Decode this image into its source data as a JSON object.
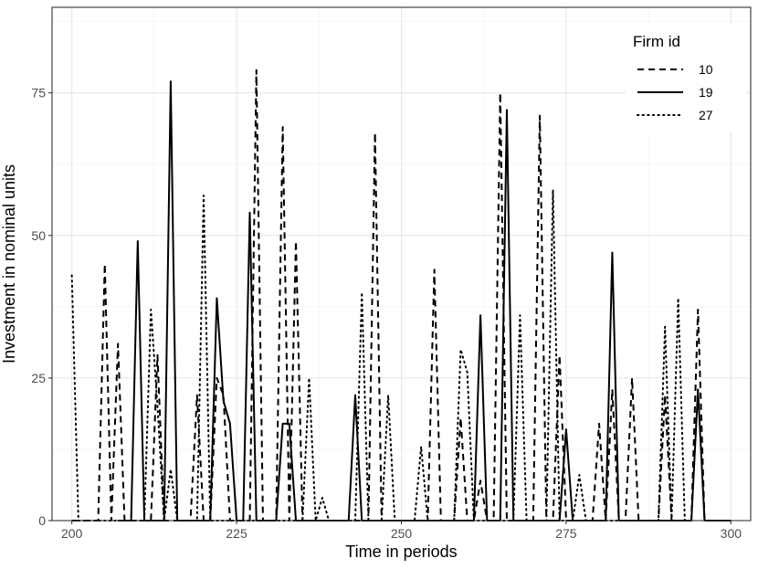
{
  "chart_data": {
    "type": "line",
    "xlabel": "Time in periods",
    "ylabel": "Investment in nominal units",
    "xlim": [
      197,
      303
    ],
    "ylim": [
      0,
      90
    ],
    "x_ticks": [
      200,
      225,
      250,
      275,
      300
    ],
    "y_ticks": [
      0,
      25,
      50,
      75
    ],
    "grid": true,
    "legend_title": "Firm id",
    "legend_position": "top-right",
    "series": [
      {
        "name": "10",
        "line_style": "dashed",
        "color": "#000000",
        "points": [
          [
            200,
            0
          ],
          [
            201,
            0
          ],
          [
            202,
            0
          ],
          [
            203,
            0
          ],
          [
            204,
            0
          ],
          [
            205,
            45
          ],
          [
            206,
            0
          ],
          [
            207,
            31
          ],
          [
            208,
            0
          ],
          [
            209,
            0
          ],
          [
            210,
            0
          ],
          [
            211,
            0
          ],
          [
            212,
            0
          ],
          [
            213,
            29
          ],
          [
            214,
            0
          ],
          [
            215,
            0
          ],
          [
            216,
            0
          ],
          [
            217,
            0
          ],
          [
            218,
            0
          ],
          [
            219,
            22
          ],
          [
            220,
            0
          ],
          [
            221,
            0
          ],
          [
            222,
            25
          ],
          [
            223,
            22
          ],
          [
            224,
            0
          ],
          [
            225,
            0
          ],
          [
            226,
            0
          ],
          [
            227,
            0
          ],
          [
            228,
            79
          ],
          [
            229,
            0
          ],
          [
            230,
            0
          ],
          [
            231,
            0
          ],
          [
            232,
            69
          ],
          [
            233,
            0
          ],
          [
            234,
            49
          ],
          [
            235,
            0
          ],
          [
            236,
            0
          ],
          [
            237,
            0
          ],
          [
            238,
            0
          ],
          [
            239,
            0
          ],
          [
            240,
            0
          ],
          [
            241,
            0
          ],
          [
            242,
            0
          ],
          [
            243,
            0
          ],
          [
            244,
            0
          ],
          [
            245,
            0
          ],
          [
            246,
            68
          ],
          [
            247,
            0
          ],
          [
            248,
            0
          ],
          [
            249,
            0
          ],
          [
            250,
            0
          ],
          [
            251,
            0
          ],
          [
            252,
            0
          ],
          [
            253,
            0
          ],
          [
            254,
            0
          ],
          [
            255,
            44
          ],
          [
            256,
            0
          ],
          [
            257,
            0
          ],
          [
            258,
            0
          ],
          [
            259,
            18
          ],
          [
            260,
            0
          ],
          [
            261,
            0
          ],
          [
            262,
            7
          ],
          [
            263,
            0
          ],
          [
            264,
            0
          ],
          [
            265,
            75
          ],
          [
            266,
            0
          ],
          [
            267,
            0
          ],
          [
            268,
            0
          ],
          [
            269,
            0
          ],
          [
            270,
            0
          ],
          [
            271,
            71
          ],
          [
            272,
            0
          ],
          [
            273,
            0
          ],
          [
            274,
            29
          ],
          [
            275,
            0
          ],
          [
            276,
            0
          ],
          [
            277,
            0
          ],
          [
            278,
            0
          ],
          [
            279,
            0
          ],
          [
            280,
            17
          ],
          [
            281,
            0
          ],
          [
            282,
            23
          ],
          [
            283,
            0
          ],
          [
            284,
            0
          ],
          [
            285,
            25
          ],
          [
            286,
            0
          ],
          [
            287,
            0
          ],
          [
            288,
            0
          ],
          [
            289,
            0
          ],
          [
            290,
            22
          ],
          [
            291,
            0
          ],
          [
            292,
            0
          ],
          [
            293,
            0
          ],
          [
            294,
            0
          ],
          [
            295,
            37
          ],
          [
            296,
            0
          ]
        ]
      },
      {
        "name": "19",
        "line_style": "solid",
        "color": "#000000",
        "points": [
          [
            207,
            0
          ],
          [
            208,
            0
          ],
          [
            209,
            0
          ],
          [
            210,
            49
          ],
          [
            211,
            0
          ],
          [
            212,
            0
          ],
          [
            213,
            0
          ],
          [
            214,
            0
          ],
          [
            215,
            77
          ],
          [
            216,
            0
          ],
          [
            217,
            0
          ],
          [
            218,
            0
          ],
          [
            219,
            0
          ],
          [
            220,
            0
          ],
          [
            221,
            0
          ],
          [
            222,
            39
          ],
          [
            223,
            21
          ],
          [
            224,
            17
          ],
          [
            225,
            0
          ],
          [
            226,
            0
          ],
          [
            227,
            54
          ],
          [
            228,
            0
          ],
          [
            229,
            0
          ],
          [
            230,
            0
          ],
          [
            231,
            0
          ],
          [
            232,
            17
          ],
          [
            233,
            17
          ],
          [
            234,
            0
          ],
          [
            235,
            0
          ],
          [
            236,
            0
          ],
          [
            237,
            0
          ],
          [
            238,
            0
          ],
          [
            239,
            0
          ],
          [
            240,
            0
          ],
          [
            241,
            0
          ],
          [
            242,
            0
          ],
          [
            243,
            22
          ],
          [
            244,
            0
          ],
          [
            245,
            0
          ],
          [
            246,
            0
          ],
          [
            247,
            0
          ],
          [
            248,
            0
          ],
          [
            249,
            0
          ],
          [
            250,
            0
          ],
          [
            251,
            0
          ],
          [
            252,
            0
          ],
          [
            253,
            0
          ],
          [
            254,
            0
          ],
          [
            255,
            0
          ],
          [
            256,
            0
          ],
          [
            257,
            0
          ],
          [
            258,
            0
          ],
          [
            259,
            0
          ],
          [
            260,
            0
          ],
          [
            261,
            0
          ],
          [
            262,
            36
          ],
          [
            263,
            0
          ],
          [
            264,
            0
          ],
          [
            265,
            0
          ],
          [
            266,
            72
          ],
          [
            267,
            0
          ],
          [
            268,
            0
          ],
          [
            269,
            0
          ],
          [
            270,
            0
          ],
          [
            271,
            0
          ],
          [
            272,
            0
          ],
          [
            273,
            0
          ],
          [
            274,
            0
          ],
          [
            275,
            16
          ],
          [
            276,
            0
          ],
          [
            277,
            0
          ],
          [
            278,
            0
          ],
          [
            279,
            0
          ],
          [
            280,
            0
          ],
          [
            281,
            0
          ],
          [
            282,
            47
          ],
          [
            283,
            0
          ],
          [
            284,
            0
          ],
          [
            285,
            0
          ],
          [
            286,
            0
          ],
          [
            287,
            0
          ],
          [
            288,
            0
          ],
          [
            289,
            0
          ],
          [
            290,
            0
          ],
          [
            291,
            0
          ],
          [
            292,
            0
          ],
          [
            293,
            0
          ],
          [
            294,
            0
          ],
          [
            295,
            23
          ],
          [
            296,
            0
          ],
          [
            297,
            0
          ],
          [
            298,
            0
          ],
          [
            299,
            0
          ],
          [
            300,
            0
          ]
        ]
      },
      {
        "name": "27",
        "line_style": "dotted",
        "color": "#000000",
        "points": [
          [
            200,
            43
          ],
          [
            201,
            0
          ],
          [
            202,
            0
          ],
          [
            203,
            0
          ],
          [
            204,
            0
          ],
          [
            205,
            0
          ],
          [
            206,
            0
          ],
          [
            207,
            0
          ],
          [
            208,
            0
          ],
          [
            209,
            0
          ],
          [
            210,
            0
          ],
          [
            211,
            0
          ],
          [
            212,
            37
          ],
          [
            213,
            20
          ],
          [
            214,
            0
          ],
          [
            215,
            9
          ],
          [
            216,
            0
          ],
          [
            217,
            0
          ],
          [
            218,
            0
          ],
          [
            219,
            0
          ],
          [
            220,
            57
          ],
          [
            221,
            0
          ],
          [
            222,
            0
          ],
          [
            223,
            0
          ],
          [
            224,
            0
          ],
          [
            225,
            0
          ],
          [
            226,
            0
          ],
          [
            227,
            0
          ],
          [
            228,
            0
          ],
          [
            229,
            0
          ],
          [
            230,
            0
          ],
          [
            231,
            0
          ],
          [
            232,
            0
          ],
          [
            233,
            0
          ],
          [
            234,
            0
          ],
          [
            235,
            0
          ],
          [
            236,
            25
          ],
          [
            237,
            0
          ],
          [
            238,
            4
          ],
          [
            239,
            0
          ],
          [
            240,
            0
          ],
          [
            241,
            0
          ],
          [
            242,
            0
          ],
          [
            243,
            0
          ],
          [
            244,
            40
          ],
          [
            245,
            0
          ],
          [
            246,
            0
          ],
          [
            247,
            0
          ],
          [
            248,
            22
          ],
          [
            249,
            0
          ],
          [
            250,
            0
          ],
          [
            251,
            0
          ],
          [
            252,
            0
          ],
          [
            253,
            13
          ],
          [
            254,
            0
          ],
          [
            255,
            0
          ],
          [
            256,
            0
          ],
          [
            257,
            0
          ],
          [
            258,
            0
          ],
          [
            259,
            30
          ],
          [
            260,
            26
          ],
          [
            261,
            0
          ],
          [
            262,
            0
          ],
          [
            263,
            0
          ],
          [
            264,
            0
          ],
          [
            265,
            0
          ],
          [
            266,
            0
          ],
          [
            267,
            0
          ],
          [
            268,
            36
          ],
          [
            269,
            0
          ],
          [
            270,
            0
          ],
          [
            271,
            0
          ],
          [
            272,
            0
          ],
          [
            273,
            58
          ],
          [
            274,
            0
          ],
          [
            275,
            0
          ],
          [
            276,
            0
          ],
          [
            277,
            8
          ],
          [
            278,
            0
          ],
          [
            279,
            0
          ],
          [
            280,
            0
          ],
          [
            281,
            0
          ],
          [
            282,
            0
          ],
          [
            283,
            0
          ],
          [
            284,
            0
          ],
          [
            285,
            0
          ],
          [
            286,
            0
          ],
          [
            287,
            0
          ],
          [
            288,
            0
          ],
          [
            289,
            0
          ],
          [
            290,
            34
          ],
          [
            291,
            0
          ],
          [
            292,
            39
          ],
          [
            293,
            0
          ]
        ]
      }
    ]
  }
}
